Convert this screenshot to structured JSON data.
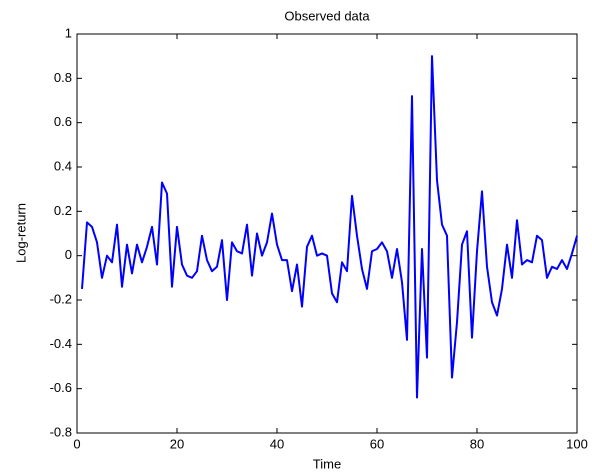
{
  "chart_data": {
    "type": "line",
    "title": "Observed data",
    "xlabel": "Time",
    "ylabel": "Log-return",
    "x": [
      1,
      2,
      3,
      4,
      5,
      6,
      7,
      8,
      9,
      10,
      11,
      12,
      13,
      14,
      15,
      16,
      17,
      18,
      19,
      20,
      21,
      22,
      23,
      24,
      25,
      26,
      27,
      28,
      29,
      30,
      31,
      32,
      33,
      34,
      35,
      36,
      37,
      38,
      39,
      40,
      41,
      42,
      43,
      44,
      45,
      46,
      47,
      48,
      49,
      50,
      51,
      52,
      53,
      54,
      55,
      56,
      57,
      58,
      59,
      60,
      61,
      62,
      63,
      64,
      65,
      66,
      67,
      68,
      69,
      70,
      71,
      72,
      73,
      74,
      75,
      76,
      77,
      78,
      79,
      80,
      81,
      82,
      83,
      84,
      85,
      86,
      87,
      88,
      89,
      90,
      91,
      92,
      93,
      94,
      95,
      96,
      97,
      98,
      99,
      100
    ],
    "series": [
      {
        "color": "#0000ff",
        "values": [
          -0.15,
          0.15,
          0.13,
          0.06,
          -0.1,
          0.0,
          -0.03,
          0.14,
          -0.14,
          0.05,
          -0.08,
          0.05,
          -0.03,
          0.04,
          0.13,
          -0.04,
          0.33,
          0.28,
          -0.14,
          0.13,
          -0.04,
          -0.09,
          -0.1,
          -0.07,
          0.09,
          -0.02,
          -0.07,
          -0.05,
          0.07,
          -0.2,
          0.06,
          0.02,
          0.01,
          0.14,
          -0.09,
          0.1,
          0.0,
          0.06,
          0.19,
          0.05,
          -0.02,
          -0.02,
          -0.16,
          -0.04,
          -0.23,
          0.04,
          0.09,
          0.0,
          0.01,
          0.0,
          -0.17,
          -0.21,
          -0.03,
          -0.07,
          0.27,
          0.09,
          -0.06,
          -0.15,
          0.02,
          0.03,
          0.06,
          0.02,
          -0.1,
          0.03,
          -0.12,
          -0.38,
          0.72,
          -0.64,
          0.03,
          -0.46,
          0.9,
          0.34,
          0.14,
          0.09,
          -0.55,
          -0.3,
          0.05,
          0.11,
          -0.37,
          0.02,
          0.29,
          -0.05,
          -0.21,
          -0.27,
          -0.15,
          0.05,
          -0.1,
          0.16,
          -0.04,
          -0.02,
          -0.03,
          0.09,
          0.07,
          -0.1,
          -0.05,
          -0.06,
          -0.02,
          -0.06,
          0.01,
          0.09
        ]
      }
    ],
    "xlim": [
      0,
      100
    ],
    "xticks": [
      0,
      20,
      40,
      60,
      80,
      100
    ],
    "ylim": [
      -0.8,
      1
    ],
    "yticks": [
      -0.8,
      -0.6,
      -0.4,
      -0.2,
      0,
      0.2,
      0.4,
      0.6,
      0.8,
      1
    ]
  }
}
